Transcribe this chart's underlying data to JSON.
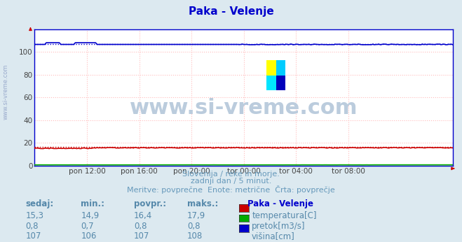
{
  "title": "Paka - Velenje",
  "title_color": "#0000cc",
  "background_color": "#dce9f0",
  "plot_bg_color": "#ffffff",
  "grid_color": "#ffbbbb",
  "xlabel_ticks": [
    "pon 12:00",
    "pon 16:00",
    "pon 20:00",
    "tor 00:00",
    "tor 04:00",
    "tor 08:00"
  ],
  "tick_fracs": [
    0.125,
    0.25,
    0.375,
    0.5,
    0.625,
    0.75
  ],
  "ylim": [
    0,
    120
  ],
  "yticks": [
    0,
    20,
    40,
    60,
    80,
    100
  ],
  "n_points": 289,
  "temp_color": "#cc0000",
  "temp_avg_color": "#cc0000",
  "pretok_color": "#00aa00",
  "visina_color": "#0000cc",
  "subtitle1": "Slovenija / reke in morje.",
  "subtitle2": "zadnji dan / 5 minut.",
  "subtitle3": "Meritve: povprečne  Enote: metrične  Črta: povprečje",
  "subtitle_color": "#6699bb",
  "watermark": "www.si-vreme.com",
  "watermark_color": "#bbccdd",
  "legend_title": "Paka - Velenje",
  "legend_title_color": "#0000cc",
  "table_header": [
    "sedaj:",
    "min.:",
    "povpr.:",
    "maks.:"
  ],
  "table_color": "#5588aa",
  "table_rows": [
    [
      "15,3",
      "14,9",
      "16,4",
      "17,9"
    ],
    [
      "0,8",
      "0,7",
      "0,8",
      "0,8"
    ],
    [
      "107",
      "106",
      "107",
      "108"
    ]
  ],
  "legend_labels": [
    "temperatura[C]",
    "pretok[m3/s]",
    "višina[cm]"
  ],
  "legend_colors": [
    "#cc0000",
    "#00aa00",
    "#0000cc"
  ],
  "left_label": "www.si-vreme.com",
  "left_label_color": "#99aacc",
  "arrow_color": "#cc0000",
  "logo_colors": [
    "#ffff00",
    "#00ffff",
    "#00ccff",
    "#0000cc"
  ]
}
